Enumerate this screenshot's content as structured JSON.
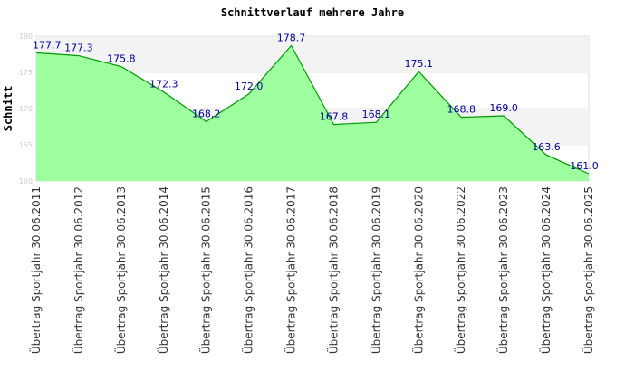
{
  "chart_data": {
    "type": "area",
    "title": "Schnittverlauf mehrere Jahre",
    "xlabel": "",
    "ylabel": "Schnitt",
    "ylim": [
      160,
      180
    ],
    "yticks": [
      160,
      165,
      170,
      175,
      180
    ],
    "grid": true,
    "categories": [
      "Übertrag Sportjahr 30.06.2011",
      "Übertrag Sportjahr 30.06.2012",
      "Übertrag Sportjahr 30.06.2013",
      "Übertrag Sportjahr 30.06.2014",
      "Übertrag Sportjahr 30.06.2015",
      "Übertrag Sportjahr 30.06.2016",
      "Übertrag Sportjahr 30.06.2017",
      "Übertrag Sportjahr 30.06.2018",
      "Übertrag Sportjahr 30.06.2019",
      "Übertrag Sportjahr 30.06.2020",
      "Übertrag Sportjahr 30.06.2022",
      "Übertrag Sportjahr 30.06.2023",
      "Übertrag Sportjahr 30.06.2024",
      "Übertrag Sportjahr 30.06.2025"
    ],
    "series": [
      {
        "name": "Schnitt",
        "values": [
          177.7,
          177.3,
          175.8,
          172.3,
          168.2,
          172.0,
          178.7,
          167.8,
          168.1,
          175.1,
          168.8,
          169.0,
          163.6,
          161.0
        ],
        "labels": [
          "177.7",
          "177.3",
          "175.8",
          "172.3",
          "168.2",
          "172.0",
          "178.7",
          "167.8",
          "168.1",
          "175.1",
          "168.8",
          "169.0",
          "163.6",
          "161.0"
        ]
      }
    ],
    "colors": {
      "fill": "#99ff99",
      "line": "#009900",
      "label": "#000099",
      "band": "#f3f3f3"
    }
  }
}
